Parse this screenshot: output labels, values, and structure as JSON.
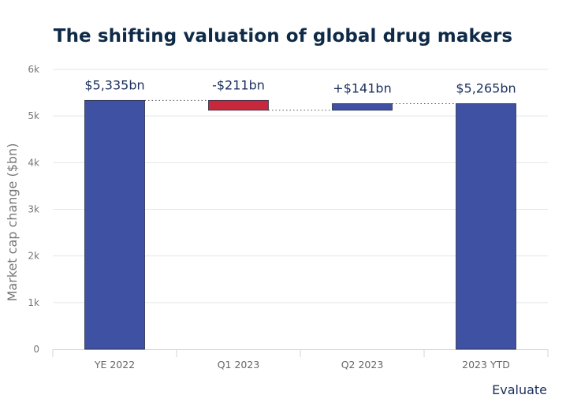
{
  "chart_data": {
    "type": "bar",
    "subtype": "waterfall",
    "title": "The shifting valuation of global drug makers",
    "xlabel": "",
    "ylabel": "Market cap change ($bn)",
    "ylim": [
      0,
      6000
    ],
    "yticks": [
      0,
      1000,
      2000,
      3000,
      4000,
      5000,
      6000
    ],
    "ytick_labels": [
      "0",
      "1k",
      "2k",
      "3k",
      "4k",
      "5k",
      "6k"
    ],
    "grid": true,
    "categories": [
      "YE 2022",
      "Q1 2023",
      "Q2 2023",
      "2023 YTD"
    ],
    "bars": [
      {
        "category": "YE 2022",
        "kind": "total",
        "start": 0,
        "end": 5335,
        "label": "$5,335bn",
        "color": "#3f51a3"
      },
      {
        "category": "Q1 2023",
        "kind": "decrease",
        "start": 5335,
        "end": 5124,
        "label": "-$211bn",
        "color": "#c8283c"
      },
      {
        "category": "Q2 2023",
        "kind": "increase",
        "start": 5124,
        "end": 5265,
        "label": "+$141bn",
        "color": "#3f51a3"
      },
      {
        "category": "2023 YTD",
        "kind": "total",
        "start": 0,
        "end": 5265,
        "label": "$5,265bn",
        "color": "#3f51a3"
      }
    ],
    "connectors": true
  },
  "source": "Evaluate",
  "colors": {
    "title": "#0e2a47",
    "total": "#3f51a3",
    "increase": "#3f51a3",
    "decrease": "#c8283c",
    "label": "#1b2f5e"
  }
}
